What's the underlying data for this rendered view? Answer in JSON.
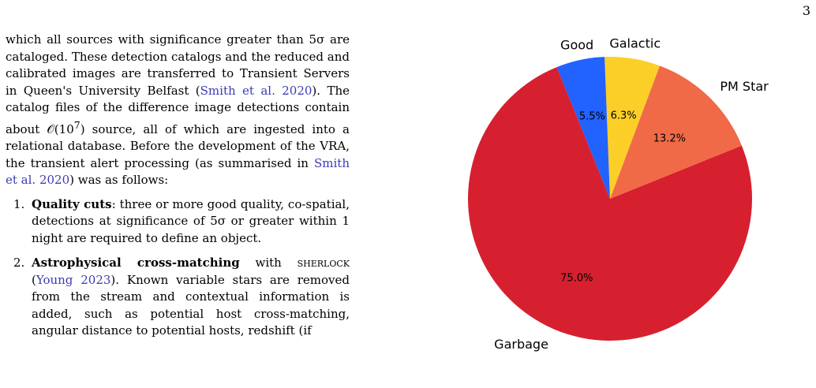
{
  "page": {
    "number": "3"
  },
  "text": {
    "intro_pre": "which all sources with significance greater than 5σ are cataloged. These detection catalogs and the reduced and calibrated images are transferred to Transient Servers in Queen's University Belfast (",
    "cite1": "Smith et al. 2020",
    "intro_mid": "). The catalog files of the difference image detections contain about 𝒪(10",
    "intro_sup": "7",
    "intro_mid2": ") source, all of which are ingested into a relational database. Before the development of the VRA, the transient alert processing (as summarised in ",
    "cite2": "Smith et al. 2020",
    "intro_post": ") was as follows:",
    "items": [
      {
        "num": "1.",
        "bold": "Quality cuts",
        "rest": ": three or more good quality, co-spatial, detections at significance of 5σ or greater within 1 night are required to define an object."
      },
      {
        "num": "2.",
        "bold": "Astrophysical cross-matching",
        "rest_pre": " with ",
        "smallcaps": "sherlock",
        "rest_mid": " (",
        "cite": "Young 2023",
        "rest_post": "). Known variable stars are removed from the stream and contextual information is added, such as potential host cross-matching, angular distance to potential hosts, redshift (if"
      }
    ]
  },
  "chart_data": {
    "type": "pie",
    "title": "",
    "start_angle_deg": 112,
    "clockwise": false,
    "slices": [
      {
        "label": "Garbage",
        "value": 75.0,
        "pct_label": "75.0%",
        "color": "#d62030"
      },
      {
        "label": "PM Star",
        "value": 13.2,
        "pct_label": "13.2%",
        "color": "#f06a48"
      },
      {
        "label": "Galactic",
        "value": 6.3,
        "pct_label": "6.3%",
        "color": "#fccf28"
      },
      {
        "label": "Good",
        "value": 5.5,
        "pct_label": "5.5%",
        "color": "#2262ff"
      }
    ]
  }
}
